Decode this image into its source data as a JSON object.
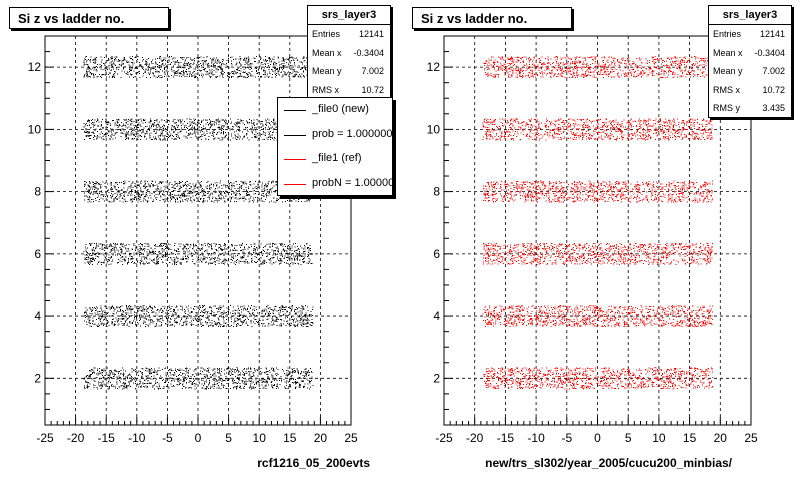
{
  "chart_data": [
    {
      "type": "scatter",
      "title": "Si z vs ladder no.",
      "xlabel": "rcf1216_05_200evts",
      "ylabel": "",
      "xlim": [
        -25,
        25
      ],
      "ylim": [
        0.5,
        13
      ],
      "xticks": [
        -25,
        -20,
        -15,
        -10,
        -5,
        0,
        5,
        10,
        15,
        20,
        25
      ],
      "yticks": [
        2,
        4,
        6,
        8,
        10,
        12
      ],
      "grid": true,
      "marker_color": "#000000",
      "series": [
        {
          "bands": [
            {
              "y": 2,
              "x_range": [
                -18.7,
                18.7
              ]
            },
            {
              "y": 4,
              "x_range": [
                -18.7,
                18.7
              ]
            },
            {
              "y": 6,
              "x_range": [
                -18.7,
                18.7
              ]
            },
            {
              "y": 8,
              "x_range": [
                -18.7,
                18.7
              ]
            },
            {
              "y": 10,
              "x_range": [
                -18.7,
                18.7
              ]
            },
            {
              "y": 12,
              "x_range": [
                -18.7,
                18.7
              ]
            }
          ]
        }
      ],
      "stats": {
        "name": "srs_layer3",
        "rows": [
          {
            "key": "Entries",
            "value": "12141"
          },
          {
            "key": "Mean x",
            "value": "-0.3404"
          },
          {
            "key": "Mean y",
            "value": "7.002"
          },
          {
            "key": "RMS x",
            "value": "10.72"
          }
        ]
      },
      "legend": {
        "position": "top-right",
        "entries": [
          {
            "label": "_file0 (new)",
            "color": "#000000"
          },
          {
            "label": "prob = 1.000000",
            "color": "#000000"
          },
          {
            "label": "_file1 (ref)",
            "color": "#ff0000"
          },
          {
            "label": "probN = 1.000000",
            "color": "#ff0000"
          }
        ]
      }
    },
    {
      "type": "scatter",
      "title": "Si z vs ladder no.",
      "xlabel": "new/trs_sl302/year_2005/cucu200_minbias/",
      "ylabel": "",
      "xlim": [
        -25,
        25
      ],
      "ylim": [
        0.5,
        13
      ],
      "xticks": [
        -25,
        -20,
        -15,
        -10,
        -5,
        0,
        5,
        10,
        15,
        20,
        25
      ],
      "yticks": [
        2,
        4,
        6,
        8,
        10,
        12
      ],
      "grid": true,
      "marker_color": "#ff0000",
      "series": [
        {
          "bands": [
            {
              "y": 2,
              "x_range": [
                -18.7,
                18.7
              ]
            },
            {
              "y": 4,
              "x_range": [
                -18.7,
                18.7
              ]
            },
            {
              "y": 6,
              "x_range": [
                -18.7,
                18.7
              ]
            },
            {
              "y": 8,
              "x_range": [
                -18.7,
                18.7
              ]
            },
            {
              "y": 10,
              "x_range": [
                -18.7,
                18.7
              ]
            },
            {
              "y": 12,
              "x_range": [
                -18.7,
                18.7
              ]
            }
          ]
        }
      ],
      "stats": {
        "name": "srs_layer3",
        "rows": [
          {
            "key": "Entries",
            "value": "12141"
          },
          {
            "key": "Mean x",
            "value": "-0.3404"
          },
          {
            "key": "Mean y",
            "value": "7.002"
          },
          {
            "key": "RMS x",
            "value": "10.72"
          },
          {
            "key": "RMS y",
            "value": "3.435"
          }
        ]
      }
    }
  ]
}
